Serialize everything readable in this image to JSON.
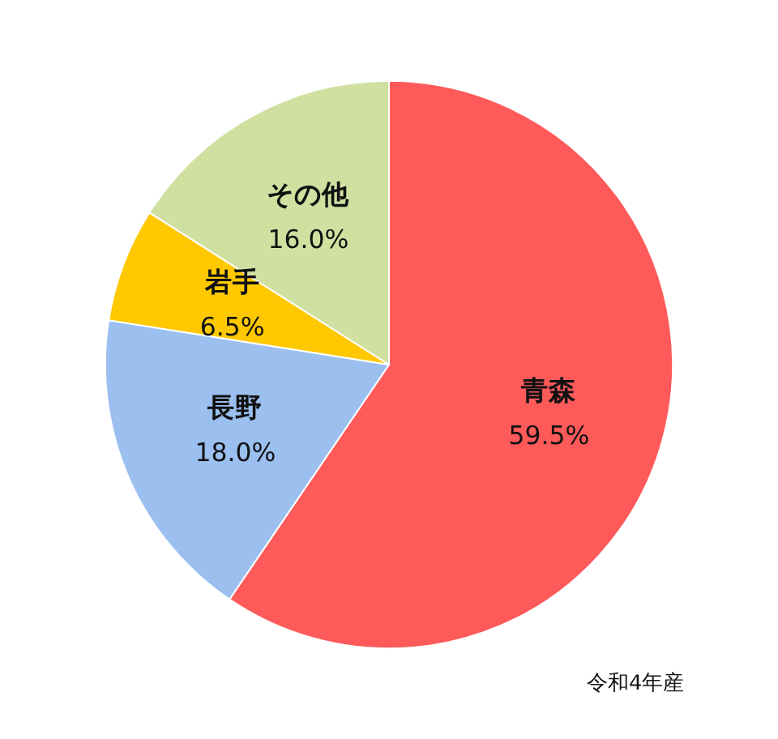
{
  "chart_data": {
    "type": "pie",
    "categories": [
      "青森",
      "長野",
      "岩手",
      "その他"
    ],
    "values": [
      59.5,
      18.0,
      6.5,
      16.0
    ],
    "colors": [
      "#fe5a5a",
      "#9bbfef",
      "#ffc800",
      "#d0e0a0"
    ],
    "data_labels": true,
    "value_labels": [
      "59.5%",
      "18.0%",
      "6.5%",
      "16.0%"
    ],
    "annotations": [
      "令和4年産"
    ]
  }
}
